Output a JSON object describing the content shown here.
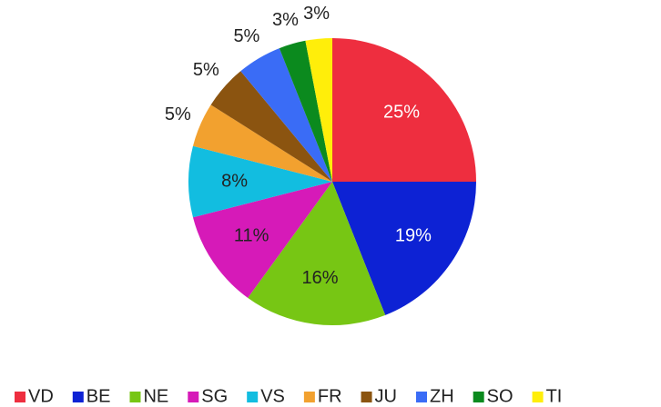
{
  "chart_data": {
    "type": "pie",
    "categories": [
      "VD",
      "BE",
      "NE",
      "SG",
      "VS",
      "FR",
      "JU",
      "ZH",
      "SO",
      "TI"
    ],
    "values": [
      25,
      19,
      16,
      11,
      8,
      5,
      5,
      5,
      3,
      3
    ],
    "value_labels": [
      "25%",
      "19%",
      "16%",
      "11%",
      "8%",
      "5%",
      "5%",
      "5%",
      "3%",
      "3%"
    ],
    "colors": [
      "#ee2e3f",
      "#0d22d4",
      "#77c614",
      "#d61ab8",
      "#12bde0",
      "#f2a12f",
      "#8b5410",
      "#3a6cf6",
      "#0b8a1e",
      "#ffee0a"
    ],
    "legend": "bottom"
  }
}
